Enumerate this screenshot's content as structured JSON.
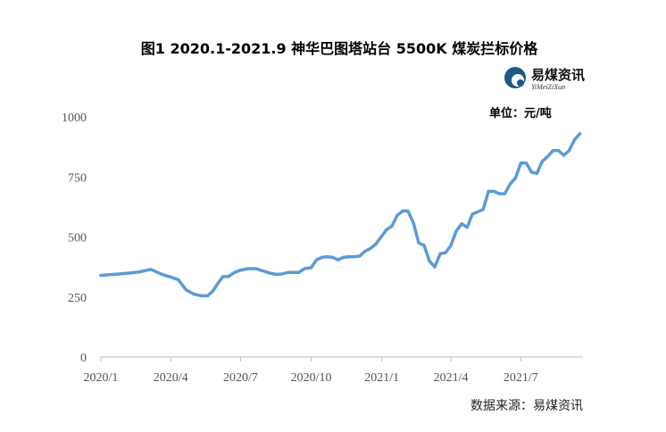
{
  "logo": {
    "cn": "易煤资讯",
    "en": "YiMeiZiXun"
  },
  "chart_data": {
    "type": "line",
    "title": "图1 2020.1-2021.9 神华巴图塔站台 5500K 煤炭拦标价格",
    "unit_label": "单位：元/吨",
    "source": "数据来源：易煤资讯",
    "xlabel": "",
    "ylabel": "",
    "ylim": [
      0,
      1000
    ],
    "yticks": [
      0,
      250,
      500,
      750,
      1000
    ],
    "xticks": [
      "2020/1",
      "2020/4",
      "2020/7",
      "2020/10",
      "2021/1",
      "2021/4",
      "2021/7"
    ],
    "xlim": [
      "2020-01-01",
      "2021-09-20"
    ],
    "grid": false,
    "color": "#5b9bd5",
    "series": [
      {
        "x": [
          "2020-01-01",
          "2020-01-21",
          "2020-02-08",
          "2020-02-21",
          "2020-03-06",
          "2020-03-20",
          "2020-04-01",
          "2020-04-11",
          "2020-04-21",
          "2020-05-01",
          "2020-05-11",
          "2020-05-19",
          "2020-05-26",
          "2020-06-01",
          "2020-06-08",
          "2020-06-15",
          "2020-06-23",
          "2020-07-01",
          "2020-07-11",
          "2020-07-21",
          "2020-08-01",
          "2020-08-08",
          "2020-08-15",
          "2020-08-22",
          "2020-09-01",
          "2020-09-08",
          "2020-09-15",
          "2020-09-22",
          "2020-10-01",
          "2020-10-08",
          "2020-10-15",
          "2020-10-22",
          "2020-10-29",
          "2020-11-05",
          "2020-11-12",
          "2020-11-19",
          "2020-11-26",
          "2020-12-03",
          "2020-12-10",
          "2020-12-17",
          "2020-12-24",
          "2020-12-31",
          "2021-01-07",
          "2021-01-14",
          "2021-01-21",
          "2021-01-28",
          "2021-02-04",
          "2021-02-11",
          "2021-02-18",
          "2021-02-25",
          "2021-03-04",
          "2021-03-11",
          "2021-03-18",
          "2021-03-25",
          "2021-04-01",
          "2021-04-08",
          "2021-04-15",
          "2021-04-22",
          "2021-04-29",
          "2021-05-06",
          "2021-05-13",
          "2021-05-20",
          "2021-05-27",
          "2021-06-03",
          "2021-06-10",
          "2021-06-17",
          "2021-06-24",
          "2021-07-01",
          "2021-07-08",
          "2021-07-15",
          "2021-07-22",
          "2021-07-29",
          "2021-08-05",
          "2021-08-12",
          "2021-08-19",
          "2021-08-26",
          "2021-09-02",
          "2021-09-09",
          "2021-09-16"
        ],
        "values": [
          340,
          345,
          350,
          355,
          365,
          345,
          333,
          322,
          280,
          262,
          255,
          255,
          275,
          305,
          335,
          335,
          352,
          362,
          368,
          368,
          357,
          350,
          345,
          345,
          352,
          352,
          352,
          368,
          372,
          405,
          415,
          418,
          415,
          405,
          415,
          418,
          418,
          420,
          440,
          452,
          470,
          500,
          530,
          545,
          590,
          608,
          608,
          560,
          475,
          465,
          400,
          375,
          430,
          435,
          465,
          525,
          555,
          540,
          595,
          605,
          615,
          690,
          690,
          680,
          680,
          720,
          745,
          808,
          808,
          770,
          765,
          815,
          835,
          860,
          860,
          840,
          860,
          905,
          930
        ]
      }
    ]
  }
}
